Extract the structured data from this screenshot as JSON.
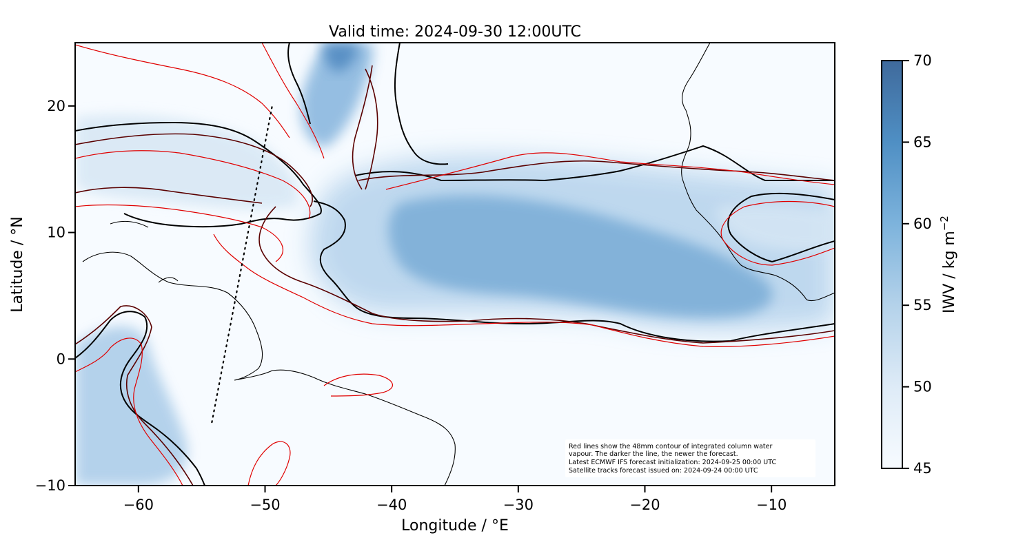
{
  "chart_data": {
    "type": "heatmap",
    "title": "Valid time: 2024-09-30 12:00UTC",
    "xlabel": "Longitude / °E",
    "ylabel": "Latitude / °N",
    "xlim": [
      -65,
      -5
    ],
    "ylim": [
      -10,
      25
    ],
    "x_ticks": [
      -60,
      -50,
      -40,
      -30,
      -20,
      -10
    ],
    "y_ticks": [
      -10,
      0,
      10,
      20
    ],
    "x_tick_labels": [
      "−60",
      "−50",
      "−40",
      "−30",
      "−20",
      "−10"
    ],
    "y_tick_labels": [
      "−10",
      "0",
      "10",
      "20"
    ],
    "colorbar": {
      "label": "IWV / kg m",
      "label_sup": "−2",
      "range": [
        45,
        70
      ],
      "ticks": [
        45,
        50,
        55,
        60,
        65,
        70
      ],
      "tick_labels": [
        "45",
        "50",
        "55",
        "60",
        "65",
        "70"
      ],
      "color_low": "#f7fbff",
      "color_high": "#3f6a9c"
    },
    "annotation": [
      "Red lines show the 48mm contour of integrated column water",
      "vapour. The darker the line, the newer the forecast.",
      "Latest ECMWF IFS forecast initialization: 2024-09-25 00:00 UTC",
      "Satellite tracks forecast issued on: 2024-09-24 00:00 UTC"
    ],
    "satellite_track": [
      [
        -54.2,
        -5.0
      ],
      [
        -49.4,
        20.2
      ]
    ],
    "contour_colors": [
      "#000000",
      "#3a0000",
      "#7a0000",
      "#e00000"
    ],
    "coastline_color": "#000000"
  }
}
